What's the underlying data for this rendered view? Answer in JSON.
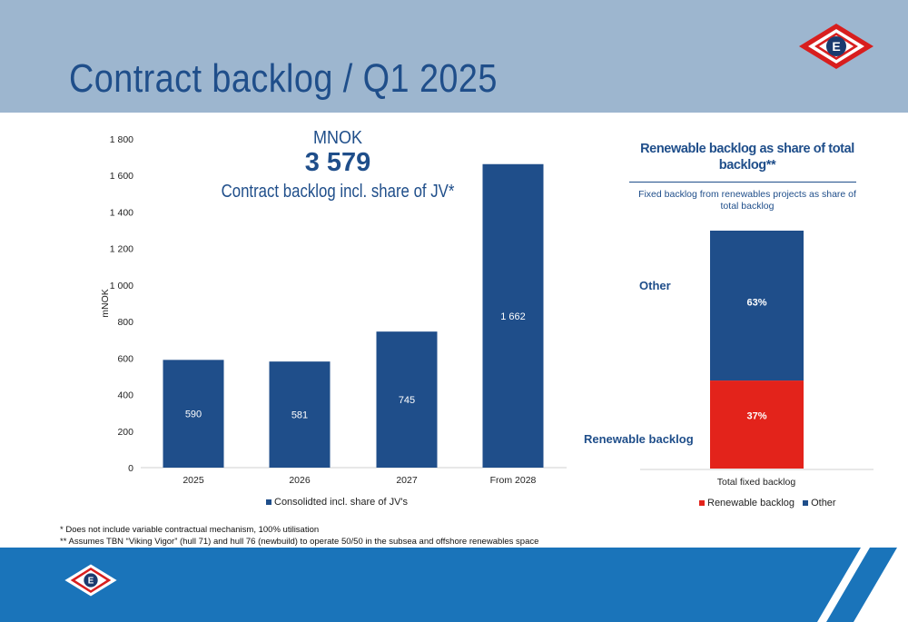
{
  "header": {
    "title": "Contract backlog / Q1 2025",
    "logo_letter": "E"
  },
  "kpi": {
    "unit": "MNOK",
    "value": "3 579",
    "caption": "Contract backlog incl. share of JV*"
  },
  "chart_data": [
    {
      "type": "bar",
      "categories": [
        "2025",
        "2026",
        "2027",
        "From 2028"
      ],
      "series": [
        {
          "name": "Consolidted incl. share of JV's",
          "values": [
            590,
            581,
            745,
            1662
          ]
        }
      ],
      "data_labels": [
        "590",
        "581",
        "745",
        "1 662"
      ],
      "y_ticks": [
        0,
        200,
        400,
        600,
        800,
        1000,
        1200,
        1400,
        1600,
        1800
      ],
      "y_tick_labels": [
        "0",
        "200",
        "400",
        "600",
        "800",
        "1 000",
        "1 200",
        "1 400",
        "1 600",
        "1 800"
      ],
      "ylabel": "mNOK",
      "ylim": [
        0,
        1800
      ],
      "grid": false,
      "legend": "bottom",
      "color": "#1f4e8a"
    },
    {
      "type": "bar",
      "stacked": true,
      "title": "Renewable backlog as share of total backlog**",
      "subtitle": "Fixed backlog from renewables projects as share of total backlog",
      "categories": [
        "Total fixed backlog"
      ],
      "series": [
        {
          "name": "Renewable backlog",
          "values": [
            37
          ],
          "label": "37%",
          "color": "#e3231b"
        },
        {
          "name": "Other",
          "values": [
            63
          ],
          "label": "63%",
          "color": "#1f4e8a"
        }
      ],
      "unit": "%",
      "ylim": [
        0,
        100
      ],
      "grid": false,
      "legend": "bottom"
    }
  ],
  "footnotes": [
    "* Does not include variable contractual mechanism, 100% utilisation",
    "** Assumes TBN “Viking Vigor” (hull 71) and hull 76 (newbuild) to operate 50/50 in the subsea and offshore renewables space"
  ],
  "colors": {
    "header_band": "#9db6cf",
    "brand_blue": "#1f4e8a",
    "bottom_band": "#1a74ba",
    "accent_red": "#e3231b"
  }
}
